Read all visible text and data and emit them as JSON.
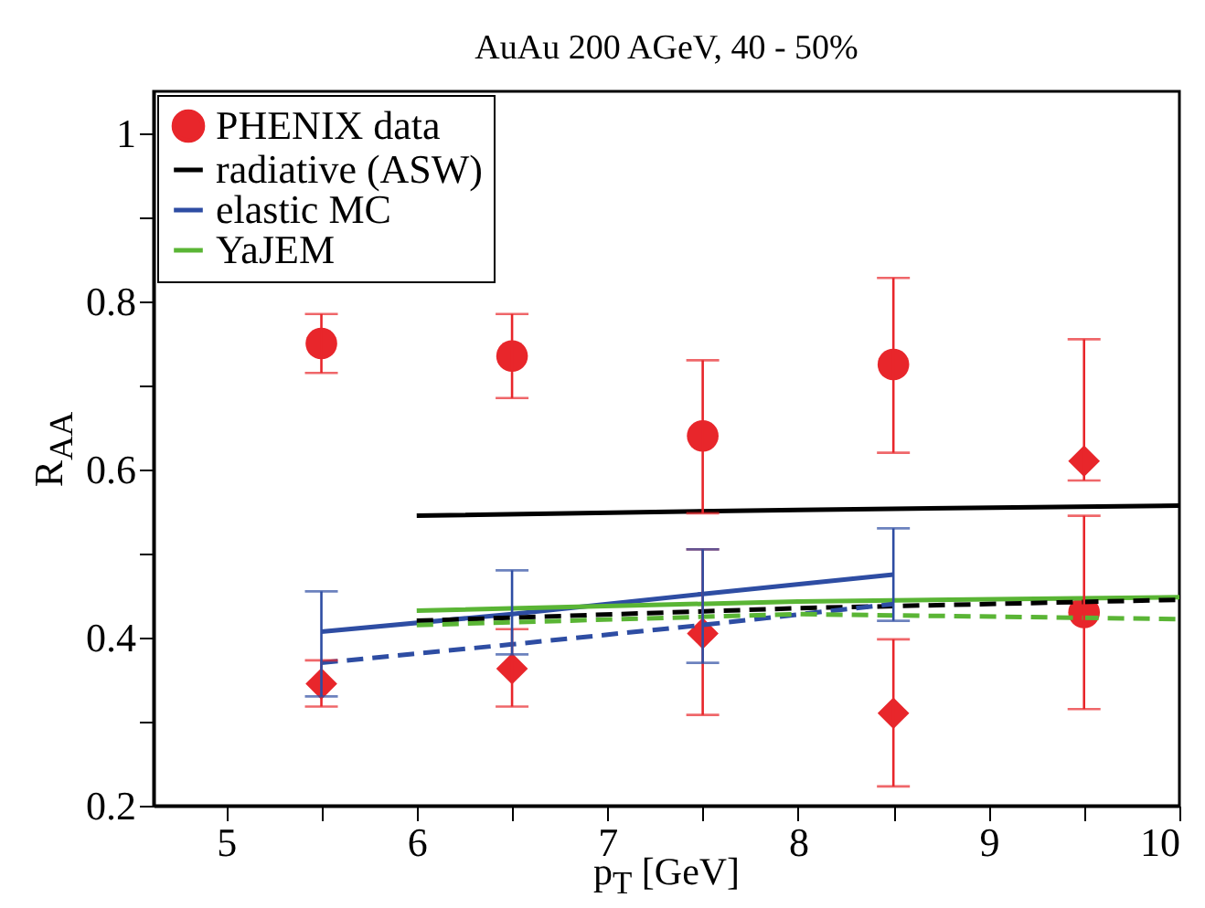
{
  "chart_data": {
    "type": "line",
    "title": "AuAu 200 AGeV, 40 - 50%",
    "xlabel": "p$_{T}$ [GeV]",
    "ylabel": "R$_{AA}$",
    "xlim": [
      4.62,
      10
    ],
    "ylim": [
      0.2,
      1.05
    ],
    "xticks": [
      5,
      {
        "value": 5.5,
        "label": null
      },
      6,
      {
        "value": 6.5,
        "label": null
      },
      7,
      {
        "value": 7.5,
        "label": null
      },
      8,
      {
        "value": 8.5,
        "label": null
      },
      9,
      {
        "value": 9.5,
        "label": null
      },
      10
    ],
    "yticks": [
      0.2,
      {
        "value": 0.3,
        "label": null
      },
      0.4,
      {
        "value": 0.5,
        "label": null
      },
      0.6,
      {
        "value": 0.7,
        "label": null
      },
      0.8,
      {
        "value": 0.9,
        "label": null
      },
      1
    ],
    "grid": false,
    "legend": "top left",
    "series": [
      {
        "name": "PHENIX data",
        "type": "scatter",
        "marker": "circle",
        "color": "#e8262b",
        "x": [
          5.5,
          6.5,
          7.5,
          8.5,
          9.5
        ],
        "values": [
          0.75,
          0.735,
          0.64,
          0.725,
          0.43
        ],
        "errors": [
          [
            0.715,
            0.785
          ],
          [
            0.685,
            0.785
          ],
          [
            0.548,
            0.73
          ],
          [
            0.62,
            0.828
          ],
          [
            0.315,
            0.545
          ]
        ]
      },
      {
        "type": "scatter",
        "marker": "diamond",
        "color": "#e8262b",
        "x": [
          5.5,
          6.5,
          7.5,
          8.5,
          9.5
        ],
        "values": [
          0.345,
          0.363,
          0.405,
          0.31,
          0.61
        ],
        "errors": [
          [
            0.318,
            0.373
          ],
          [
            0.318,
            0.41
          ],
          [
            0.308,
            0.505
          ],
          [
            0.223,
            0.398
          ],
          [
            0.587,
            0.755
          ]
        ]
      },
      {
        "name": "radiative (ASW)",
        "line_style": "solid",
        "marker": "none",
        "color": "#000000",
        "x": [
          6,
          8,
          10
        ],
        "values": [
          0.545,
          0.552,
          0.557
        ]
      },
      {
        "name": "elastic MC",
        "line_style": "solid",
        "marker": "none",
        "color": "#2e4da3",
        "x": [
          5.5,
          6.5,
          7.5,
          8.5
        ],
        "values": [
          0.407,
          0.428,
          0.452,
          0.475
        ],
        "errors": [
          [
            0.33,
            0.455
          ],
          [
            0.38,
            0.48
          ],
          [
            0.37,
            0.505
          ],
          [
            0.42,
            0.53
          ]
        ]
      },
      {
        "name": "YaJEM",
        "line_style": "solid",
        "marker": "none",
        "color": "#5ab535",
        "x": [
          6,
          8,
          10
        ],
        "values": [
          0.432,
          0.443,
          0.448
        ]
      },
      {
        "line_style": "dashed",
        "marker": "none",
        "color": "#000000",
        "x": [
          6,
          8,
          10
        ],
        "values": [
          0.42,
          0.435,
          0.445
        ]
      },
      {
        "line_style": "dashed",
        "marker": "none",
        "color": "#2e4da3",
        "x": [
          5.5,
          6.5,
          7.5,
          8.5
        ],
        "values": [
          0.37,
          0.392,
          0.415,
          0.44
        ]
      },
      {
        "line_style": "dashed",
        "marker": "none",
        "color": "#5ab535",
        "x": [
          6,
          8,
          10
        ],
        "values": [
          0.415,
          0.428,
          0.422
        ]
      }
    ]
  }
}
